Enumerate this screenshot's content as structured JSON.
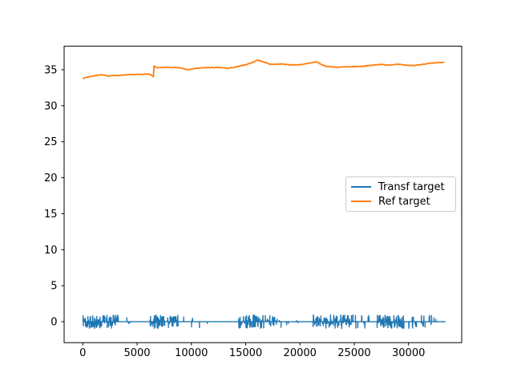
{
  "chart_data": {
    "type": "line",
    "title": "",
    "xlabel": "",
    "ylabel": "",
    "grid": false,
    "xlim": [
      -1720,
      34894
    ],
    "ylim": [
      -2.91,
      38.27
    ],
    "x_ticks": [
      0,
      5000,
      10000,
      15000,
      20000,
      25000,
      30000
    ],
    "y_ticks": [
      0,
      5,
      10,
      15,
      20,
      25,
      30,
      35
    ],
    "axis_color": "#000000",
    "legend_position": "center right",
    "series": [
      {
        "name": "Transf target",
        "color": "#1f77b4",
        "description": "noisy signal hugging 0 with burst clusters of spikes up to about +/-1",
        "x_range": [
          0,
          33400
        ],
        "baseline": 0,
        "spike_amplitude_range": [
          0.18,
          1.0
        ],
        "spike_clusters": [
          {
            "start": 0,
            "end": 3300,
            "density": 0.55
          },
          {
            "start": 3500,
            "end": 4400,
            "density": 0.12
          },
          {
            "start": 6100,
            "end": 8800,
            "density": 0.55
          },
          {
            "start": 9000,
            "end": 11600,
            "density": 0.08
          },
          {
            "start": 14300,
            "end": 16700,
            "density": 0.55
          },
          {
            "start": 16800,
            "end": 18300,
            "density": 0.25
          },
          {
            "start": 18500,
            "end": 20000,
            "density": 0.1
          },
          {
            "start": 21200,
            "end": 24900,
            "density": 0.5
          },
          {
            "start": 25100,
            "end": 26400,
            "density": 0.12
          },
          {
            "start": 27100,
            "end": 29600,
            "density": 0.55
          },
          {
            "start": 29800,
            "end": 32600,
            "density": 0.15
          }
        ]
      },
      {
        "name": "Ref target",
        "color": "#ff7f0e",
        "description": "smooth slightly-noisy line around 34-36 with step jump near x=6500 and peak near x=16000",
        "keypoints": [
          [
            0,
            33.8
          ],
          [
            500,
            34.0
          ],
          [
            1200,
            34.2
          ],
          [
            1700,
            34.3
          ],
          [
            2300,
            34.15
          ],
          [
            3200,
            34.2
          ],
          [
            4200,
            34.3
          ],
          [
            5300,
            34.35
          ],
          [
            6000,
            34.4
          ],
          [
            6300,
            34.25
          ],
          [
            6500,
            34.05
          ],
          [
            6560,
            35.5
          ],
          [
            6900,
            35.25
          ],
          [
            7800,
            35.35
          ],
          [
            8800,
            35.3
          ],
          [
            9700,
            35.0
          ],
          [
            10500,
            35.2
          ],
          [
            11500,
            35.3
          ],
          [
            12600,
            35.3
          ],
          [
            13400,
            35.2
          ],
          [
            14200,
            35.4
          ],
          [
            15000,
            35.7
          ],
          [
            15600,
            36.0
          ],
          [
            16100,
            36.35
          ],
          [
            16700,
            36.05
          ],
          [
            17300,
            35.75
          ],
          [
            18200,
            35.8
          ],
          [
            19000,
            35.7
          ],
          [
            19800,
            35.65
          ],
          [
            21000,
            35.95
          ],
          [
            21500,
            36.1
          ],
          [
            22300,
            35.5
          ],
          [
            23300,
            35.35
          ],
          [
            24500,
            35.4
          ],
          [
            25500,
            35.45
          ],
          [
            26500,
            35.6
          ],
          [
            27400,
            35.75
          ],
          [
            28000,
            35.65
          ],
          [
            29000,
            35.75
          ],
          [
            30000,
            35.6
          ],
          [
            31000,
            35.65
          ],
          [
            32000,
            35.9
          ],
          [
            33300,
            36.05
          ]
        ]
      }
    ]
  },
  "legend": {
    "border_color": "#cccccc",
    "background": "#ffffff",
    "entries": [
      {
        "label": "Transf target",
        "color": "#1f77b4"
      },
      {
        "label": "Ref target",
        "color": "#ff7f0e"
      }
    ]
  }
}
